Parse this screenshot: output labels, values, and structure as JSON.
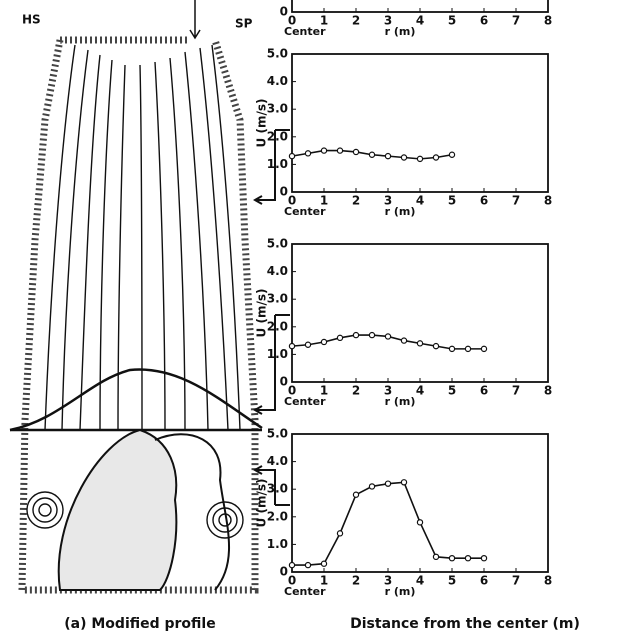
{
  "diagram": {
    "left_label": "HS",
    "right_label": "SP",
    "caption": "(a) Modified profile"
  },
  "figure_caption": "Distance from the center (m)",
  "chart_data": [
    {
      "type": "line",
      "xlabel": "r (m)",
      "origin_label": "Center",
      "xlim": [
        0,
        8
      ],
      "xticks": [
        0,
        1,
        2,
        3,
        4,
        5,
        6,
        7,
        8
      ],
      "ylim": [
        0,
        5
      ],
      "yticks": [
        0
      ],
      "series": []
    },
    {
      "type": "line",
      "xlabel": "r (m)",
      "origin_label": "Center",
      "ylabel": "U (m/s)",
      "xlim": [
        0,
        8
      ],
      "xticks": [
        0,
        1,
        2,
        3,
        4,
        5,
        6,
        7,
        8
      ],
      "ylim": [
        0,
        5
      ],
      "yticks": [
        0,
        {
          "value": 1,
          "label": "1.0"
        },
        {
          "value": 2,
          "label": "2.0"
        },
        {
          "value": 3,
          "label": "3.0"
        },
        {
          "value": 4,
          "label": "4.0"
        },
        {
          "value": 5,
          "label": "5.0"
        }
      ],
      "series": [
        {
          "color": "#111111",
          "x": [
            0,
            0.5,
            1,
            1.5,
            2,
            2.5,
            3,
            3.5,
            4,
            4.5,
            5
          ],
          "values": [
            1.3,
            1.4,
            1.5,
            1.5,
            1.45,
            1.35,
            1.3,
            1.25,
            1.2,
            1.25,
            1.35
          ]
        }
      ]
    },
    {
      "type": "line",
      "xlabel": "r (m)",
      "origin_label": "Center",
      "ylabel": "U (m/s)",
      "xlim": [
        0,
        8
      ],
      "xticks": [
        0,
        1,
        2,
        3,
        4,
        5,
        6,
        7,
        8
      ],
      "ylim": [
        0,
        5
      ],
      "yticks": [
        0,
        {
          "value": 1,
          "label": "1.0"
        },
        {
          "value": 2,
          "label": "2.0"
        },
        {
          "value": 3,
          "label": "3.0"
        },
        {
          "value": 4,
          "label": "4.0"
        },
        {
          "value": 5,
          "label": "5.0"
        }
      ],
      "series": [
        {
          "color": "#111111",
          "x": [
            0,
            0.5,
            1,
            1.5,
            2,
            2.5,
            3,
            3.5,
            4,
            4.5,
            5,
            5.5,
            6
          ],
          "values": [
            1.3,
            1.35,
            1.45,
            1.6,
            1.7,
            1.7,
            1.65,
            1.5,
            1.4,
            1.3,
            1.2,
            1.2,
            1.2
          ]
        }
      ]
    },
    {
      "type": "line",
      "xlabel": "r (m)",
      "origin_label": "Center",
      "ylabel": "U (m/s)",
      "xlim": [
        0,
        8
      ],
      "xticks": [
        0,
        1,
        2,
        3,
        4,
        5,
        6,
        7,
        8
      ],
      "ylim": [
        0,
        5
      ],
      "yticks": [
        0,
        {
          "value": 1,
          "label": "1.0"
        },
        {
          "value": 2,
          "label": "2.0"
        },
        {
          "value": 3,
          "label": "3.0"
        },
        {
          "value": 4,
          "label": "4.0"
        },
        {
          "value": 5,
          "label": "5.0"
        }
      ],
      "series": [
        {
          "color": "#111111",
          "x": [
            0,
            0.5,
            1,
            1.5,
            2,
            2.5,
            3,
            3.5,
            4,
            4.5,
            5,
            5.5,
            6
          ],
          "values": [
            0.25,
            0.25,
            0.3,
            1.4,
            2.8,
            3.1,
            3.2,
            3.25,
            1.8,
            0.55,
            0.5,
            0.5,
            0.5
          ]
        }
      ]
    }
  ]
}
